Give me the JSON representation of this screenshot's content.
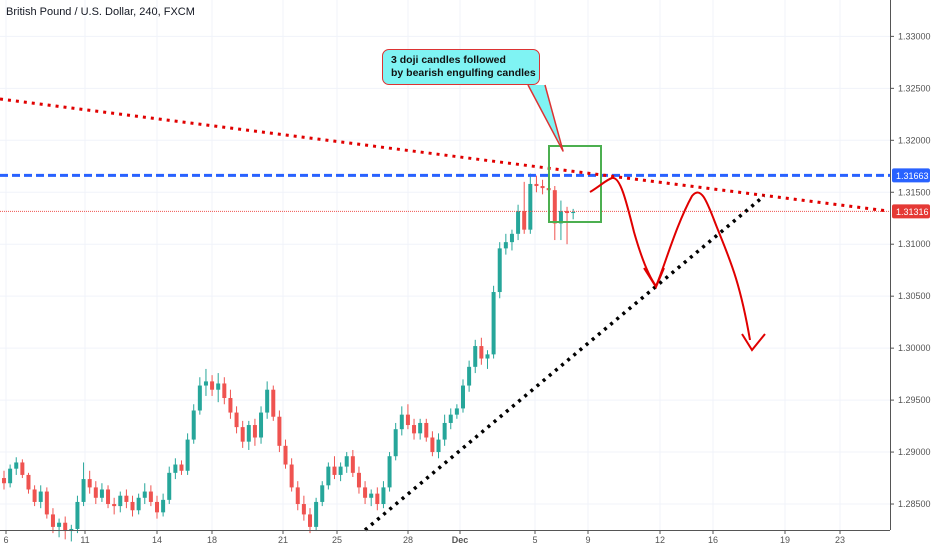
{
  "window": {
    "title": "British Pound / U.S. Dollar, 240, FXCM"
  },
  "annotation": {
    "line1": "3 doji candles followed",
    "line2": "by bearish engulfing candles"
  },
  "price_labels": {
    "resistance": {
      "value": "1.31663",
      "color": "#2962ff"
    },
    "last": {
      "value": "1.31316",
      "color": "#e53935"
    }
  },
  "colors": {
    "up": "#26a69a",
    "down": "#ef5350",
    "trend": "#e00000",
    "support": "#000000",
    "box": "#4caf50",
    "resistance": "#2962ff"
  },
  "chart_data": {
    "type": "candlestick",
    "title": "British Pound / U.S. Dollar, 240, FXCM",
    "y_ticks": [
      1.285,
      1.29,
      1.295,
      1.3,
      1.305,
      1.31,
      1.315,
      1.32,
      1.325,
      1.33
    ],
    "ylim": [
      1.2825,
      1.3335
    ],
    "x_ticks": [
      "6",
      "11",
      "14",
      "18",
      "21",
      "25",
      "28",
      "Dec",
      "5",
      "9",
      "12",
      "16",
      "19",
      "23"
    ],
    "candles": [
      [
        1.2875,
        1.2882,
        1.2864,
        1.287
      ],
      [
        1.287,
        1.2888,
        1.2866,
        1.2884
      ],
      [
        1.2884,
        1.2895,
        1.2878,
        1.289
      ],
      [
        1.289,
        1.2893,
        1.2875,
        1.2878
      ],
      [
        1.2878,
        1.288,
        1.286,
        1.2864
      ],
      [
        1.2864,
        1.2868,
        1.2848,
        1.2852
      ],
      [
        1.2852,
        1.2868,
        1.2846,
        1.2862
      ],
      [
        1.2862,
        1.2866,
        1.2836,
        1.284
      ],
      [
        1.284,
        1.2846,
        1.2822,
        1.2828
      ],
      [
        1.2828,
        1.2836,
        1.2818,
        1.2832
      ],
      [
        1.2832,
        1.2838,
        1.2816,
        1.2824
      ],
      [
        1.2824,
        1.283,
        1.2814,
        1.2826
      ],
      [
        1.2826,
        1.2858,
        1.2822,
        1.2852
      ],
      [
        1.2852,
        1.289,
        1.2848,
        1.2874
      ],
      [
        1.2874,
        1.2882,
        1.286,
        1.2866
      ],
      [
        1.2866,
        1.2872,
        1.285,
        1.2856
      ],
      [
        1.2856,
        1.287,
        1.2852,
        1.2864
      ],
      [
        1.2864,
        1.2868,
        1.2846,
        1.285
      ],
      [
        1.285,
        1.2856,
        1.284,
        1.2848
      ],
      [
        1.2848,
        1.2862,
        1.2842,
        1.2858
      ],
      [
        1.2858,
        1.2864,
        1.2846,
        1.2852
      ],
      [
        1.2852,
        1.2858,
        1.2838,
        1.2844
      ],
      [
        1.2844,
        1.286,
        1.284,
        1.2856
      ],
      [
        1.2856,
        1.287,
        1.285,
        1.2862
      ],
      [
        1.2862,
        1.2868,
        1.2848,
        1.2852
      ],
      [
        1.2852,
        1.2858,
        1.2836,
        1.2842
      ],
      [
        1.2842,
        1.286,
        1.2838,
        1.2854
      ],
      [
        1.2854,
        1.2886,
        1.285,
        1.288
      ],
      [
        1.288,
        1.2894,
        1.2874,
        1.2888
      ],
      [
        1.2888,
        1.2892,
        1.2878,
        1.2882
      ],
      [
        1.2882,
        1.2918,
        1.2878,
        1.2912
      ],
      [
        1.2912,
        1.2946,
        1.2908,
        1.294
      ],
      [
        1.294,
        1.2972,
        1.2936,
        1.2964
      ],
      [
        1.2964,
        1.298,
        1.2954,
        1.2968
      ],
      [
        1.2968,
        1.2974,
        1.2954,
        1.296
      ],
      [
        1.296,
        1.2976,
        1.2948,
        1.2966
      ],
      [
        1.2966,
        1.2972,
        1.2946,
        1.2952
      ],
      [
        1.2952,
        1.296,
        1.2932,
        1.2938
      ],
      [
        1.2938,
        1.2944,
        1.2918,
        1.2924
      ],
      [
        1.2924,
        1.293,
        1.2904,
        1.291
      ],
      [
        1.291,
        1.293,
        1.2902,
        1.2926
      ],
      [
        1.2926,
        1.2932,
        1.2906,
        1.2914
      ],
      [
        1.2914,
        1.2944,
        1.2908,
        1.2938
      ],
      [
        1.2938,
        1.2968,
        1.2932,
        1.296
      ],
      [
        1.296,
        1.2964,
        1.293,
        1.2934
      ],
      [
        1.2934,
        1.294,
        1.29,
        1.2906
      ],
      [
        1.2906,
        1.2912,
        1.2884,
        1.2888
      ],
      [
        1.2888,
        1.2894,
        1.2862,
        1.2866
      ],
      [
        1.2866,
        1.2872,
        1.2844,
        1.285
      ],
      [
        1.285,
        1.2858,
        1.2834,
        1.284
      ],
      [
        1.284,
        1.2846,
        1.2822,
        1.2828
      ],
      [
        1.2828,
        1.2856,
        1.2824,
        1.2852
      ],
      [
        1.2852,
        1.2872,
        1.2848,
        1.2868
      ],
      [
        1.2868,
        1.289,
        1.2864,
        1.2886
      ],
      [
        1.2886,
        1.2896,
        1.2874,
        1.2878
      ],
      [
        1.2878,
        1.289,
        1.2872,
        1.2886
      ],
      [
        1.2886,
        1.29,
        1.288,
        1.2896
      ],
      [
        1.2896,
        1.2902,
        1.2876,
        1.288
      ],
      [
        1.288,
        1.2886,
        1.286,
        1.2866
      ],
      [
        1.2866,
        1.2872,
        1.285,
        1.2856
      ],
      [
        1.2856,
        1.2864,
        1.2848,
        1.286
      ],
      [
        1.286,
        1.2866,
        1.2844,
        1.285
      ],
      [
        1.285,
        1.2872,
        1.2846,
        1.2866
      ],
      [
        1.2866,
        1.29,
        1.2862,
        1.2896
      ],
      [
        1.2896,
        1.2928,
        1.2892,
        1.2922
      ],
      [
        1.2922,
        1.2944,
        1.2916,
        1.2936
      ],
      [
        1.2936,
        1.2946,
        1.2922,
        1.2926
      ],
      [
        1.2926,
        1.2932,
        1.2912,
        1.2918
      ],
      [
        1.2918,
        1.2932,
        1.2912,
        1.2928
      ],
      [
        1.2928,
        1.2932,
        1.291,
        1.2914
      ],
      [
        1.2914,
        1.292,
        1.2896,
        1.29
      ],
      [
        1.29,
        1.2918,
        1.2894,
        1.2912
      ],
      [
        1.2912,
        1.2936,
        1.2906,
        1.2928
      ],
      [
        1.2928,
        1.2942,
        1.2922,
        1.2936
      ],
      [
        1.2936,
        1.2946,
        1.2932,
        1.2942
      ],
      [
        1.2942,
        1.297,
        1.2938,
        1.2964
      ],
      [
        1.2964,
        1.2988,
        1.2958,
        1.2982
      ],
      [
        1.2982,
        1.3008,
        1.2976,
        1.3002
      ],
      [
        1.3002,
        1.301,
        1.2984,
        1.299
      ],
      [
        1.299,
        1.2998,
        1.298,
        1.2994
      ],
      [
        1.2994,
        1.306,
        1.299,
        1.3054
      ],
      [
        1.3054,
        1.3102,
        1.3048,
        1.3096
      ],
      [
        1.3096,
        1.311,
        1.309,
        1.3102
      ],
      [
        1.3102,
        1.3114,
        1.3094,
        1.311
      ],
      [
        1.311,
        1.3138,
        1.3104,
        1.3132
      ],
      [
        1.3132,
        1.316,
        1.311,
        1.3114
      ],
      [
        1.3114,
        1.3168,
        1.311,
        1.3158
      ],
      [
        1.3158,
        1.3166,
        1.315,
        1.3156
      ],
      [
        1.3156,
        1.3162,
        1.3148,
        1.3154
      ],
      [
        1.3154,
        1.316,
        1.3146,
        1.3152
      ],
      [
        1.3152,
        1.3156,
        1.3104,
        1.312
      ],
      [
        1.312,
        1.3142,
        1.3104,
        1.3132
      ],
      [
        1.3132,
        1.3136,
        1.31,
        1.313
      ],
      [
        1.313,
        1.3134,
        1.3124,
        1.3131
      ]
    ],
    "resistance_level": 1.31663,
    "last_price": 1.31316
  }
}
